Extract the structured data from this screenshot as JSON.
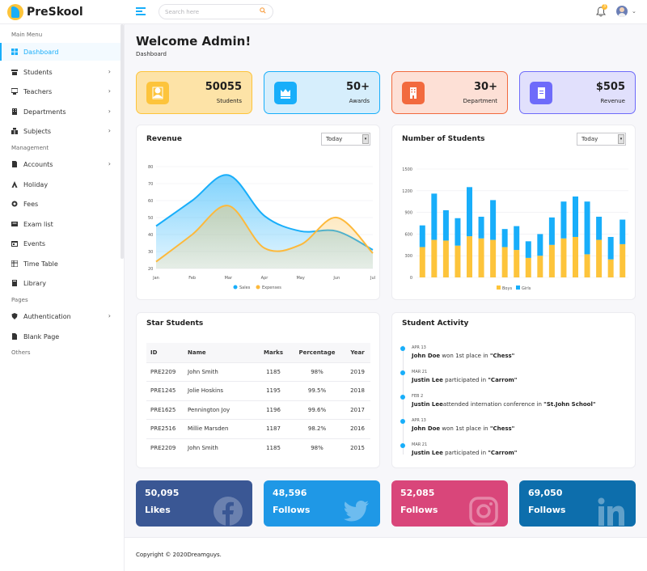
{
  "app": {
    "name": "PreSkool"
  },
  "header": {
    "search_placeholder": "Search here",
    "notification_count": "3"
  },
  "sidebar": {
    "sections": [
      "Main Menu",
      "Management",
      "Pages",
      "Others"
    ],
    "items": [
      {
        "label": "Dashboard",
        "icon": "dashboard-icon"
      },
      {
        "label": "Students",
        "icon": "student-icon"
      },
      {
        "label": "Teachers",
        "icon": "teacher-icon"
      },
      {
        "label": "Departments",
        "icon": "department-icon"
      },
      {
        "label": "Subjects",
        "icon": "subjects-icon"
      },
      {
        "label": "Accounts",
        "icon": "accounts-icon"
      },
      {
        "label": "Holiday",
        "icon": "holiday-icon"
      },
      {
        "label": "Fees",
        "icon": "fees-icon"
      },
      {
        "label": "Exam list",
        "icon": "exam-icon"
      },
      {
        "label": "Events",
        "icon": "events-icon"
      },
      {
        "label": "Time Table",
        "icon": "timetable-icon"
      },
      {
        "label": "Library",
        "icon": "library-icon"
      },
      {
        "label": "Authentication",
        "icon": "shield-icon"
      },
      {
        "label": "Blank Page",
        "icon": "page-icon"
      }
    ]
  },
  "page": {
    "title": "Welcome Admin!",
    "breadcrumb": "Dashboard"
  },
  "stats": [
    {
      "value": "50055",
      "label": "Students",
      "color": "#fdc43b"
    },
    {
      "value": "50+",
      "label": "Awards",
      "color": "#18aefa"
    },
    {
      "value": "30+",
      "label": "Department",
      "color": "#f26a3e"
    },
    {
      "value": "$505",
      "label": "Revenue",
      "color": "#6e6bfa"
    }
  ],
  "revenue_card": {
    "title": "Revenue",
    "filter": "Today"
  },
  "students_card": {
    "title": "Number of Students",
    "filter": "Today"
  },
  "chart_data": [
    {
      "type": "area",
      "categories": [
        "Jan",
        "Feb",
        "Mar",
        "Apr",
        "May",
        "Jun",
        "Jul"
      ],
      "ylim": [
        20,
        80
      ],
      "yticks": [
        "80",
        "70",
        "60",
        "50",
        "40",
        "30",
        "20"
      ],
      "series": [
        {
          "name": "Sales",
          "color": "#18aefa",
          "values": [
            45,
            60,
            75,
            51,
            42,
            42,
            31
          ]
        },
        {
          "name": "Expenses",
          "color": "#fdb93b",
          "values": [
            24,
            40,
            57,
            32,
            34,
            50,
            29
          ]
        }
      ],
      "legend": "bottom"
    },
    {
      "type": "bar",
      "stacked": true,
      "x_count": 18,
      "ylim": [
        0,
        1500
      ],
      "yticks": [
        "1500",
        "1200",
        "900",
        "600",
        "300",
        "0"
      ],
      "series": [
        {
          "name": "Boys",
          "color": "#fdc43b",
          "values": [
            420,
            520,
            510,
            440,
            570,
            540,
            520,
            420,
            380,
            270,
            300,
            450,
            540,
            560,
            320,
            520,
            250,
            460
          ]
        },
        {
          "name": "Girls",
          "color": "#18aefa",
          "values": [
            300,
            640,
            420,
            380,
            680,
            300,
            550,
            250,
            330,
            230,
            300,
            380,
            510,
            560,
            730,
            320,
            310,
            340
          ]
        }
      ],
      "legend": "bottom"
    }
  ],
  "star_students": {
    "title": "Star Students",
    "columns": [
      "ID",
      "Name",
      "Marks",
      "Percentage",
      "Year"
    ],
    "rows": [
      [
        "PRE2209",
        "John Smith",
        "1185",
        "98%",
        "2019"
      ],
      [
        "PRE1245",
        "Jolie Hoskins",
        "1195",
        "99.5%",
        "2018"
      ],
      [
        "PRE1625",
        "Pennington Joy",
        "1196",
        "99.6%",
        "2017"
      ],
      [
        "PRE2516",
        "Millie Marsden",
        "1187",
        "98.2%",
        "2016"
      ],
      [
        "PRE2209",
        "John Smith",
        "1185",
        "98%",
        "2015"
      ]
    ]
  },
  "activity": {
    "title": "Student Activity",
    "items": [
      {
        "date": "APR 13",
        "name": "John Doe",
        "text": " won 1st place in ",
        "target": "\"Chess\""
      },
      {
        "date": "MAR 21",
        "name": "Justin Lee",
        "text": " participated in ",
        "target": "\"Carrom\""
      },
      {
        "date": "FEB 2",
        "name": "Justin Lee",
        "text": "attended internation conference in ",
        "target": "\"St.John School\""
      },
      {
        "date": "APR 13",
        "name": "John Doe",
        "text": " won 1st place in ",
        "target": "\"Chess\""
      },
      {
        "date": "MAR 21",
        "name": "Justin Lee",
        "text": " participated in ",
        "target": "\"Carrom\""
      }
    ]
  },
  "social": [
    {
      "count": "50,095",
      "label": "Likes",
      "color": "#3a5794",
      "icon": "facebook-icon"
    },
    {
      "count": "48,596",
      "label": "Follows",
      "color": "#1f98e6",
      "icon": "twitter-icon"
    },
    {
      "count": "52,085",
      "label": "Follows",
      "color": "#d9467a",
      "icon": "instagram-icon"
    },
    {
      "count": "69,050",
      "label": "Follows",
      "color": "#0d6eac",
      "icon": "linkedin-icon"
    }
  ],
  "footer": {
    "text": "Copyright © 2020Dreamguys."
  }
}
